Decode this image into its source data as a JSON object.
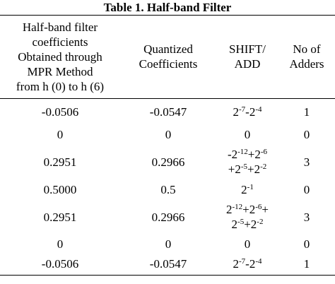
{
  "title": "Table 1. Half-band Filter",
  "table": {
    "header": [
      [
        "Half-band filter",
        "coefficients",
        "Obtained through",
        "MPR Method",
        "from h (0) to h (6)"
      ],
      [
        "Quantized",
        "Coefficients"
      ],
      [
        "SHIFT/",
        "ADD"
      ],
      [
        "No of",
        "Adders"
      ]
    ],
    "rows": [
      [
        "-0.0506",
        "-0.0547",
        [
          [
            "2",
            "-7",
            "-2",
            "-4"
          ]
        ],
        "1"
      ],
      [
        "0",
        "0",
        [
          [
            "0"
          ]
        ],
        "0"
      ],
      [
        "0.2951",
        "0.2966",
        [
          [
            "-2",
            "-12",
            "+2",
            "-6"
          ],
          [
            "+2",
            "-5",
            "+2",
            "-2"
          ]
        ],
        "3"
      ],
      [
        "0.5000",
        "0.5",
        [
          [
            "2",
            "-1"
          ]
        ],
        "0"
      ],
      [
        "0.2951",
        "0.2966",
        [
          [
            "2",
            "-12",
            "+2",
            "-6",
            "+"
          ],
          [
            "2",
            "-5",
            "+2",
            "-2"
          ]
        ],
        "3"
      ],
      [
        "0",
        "0",
        [
          [
            "0"
          ]
        ],
        "0"
      ],
      [
        "-0.0506",
        "-0.0547",
        [
          [
            "2",
            "-7",
            "-2",
            "-4"
          ]
        ],
        "1"
      ]
    ]
  }
}
